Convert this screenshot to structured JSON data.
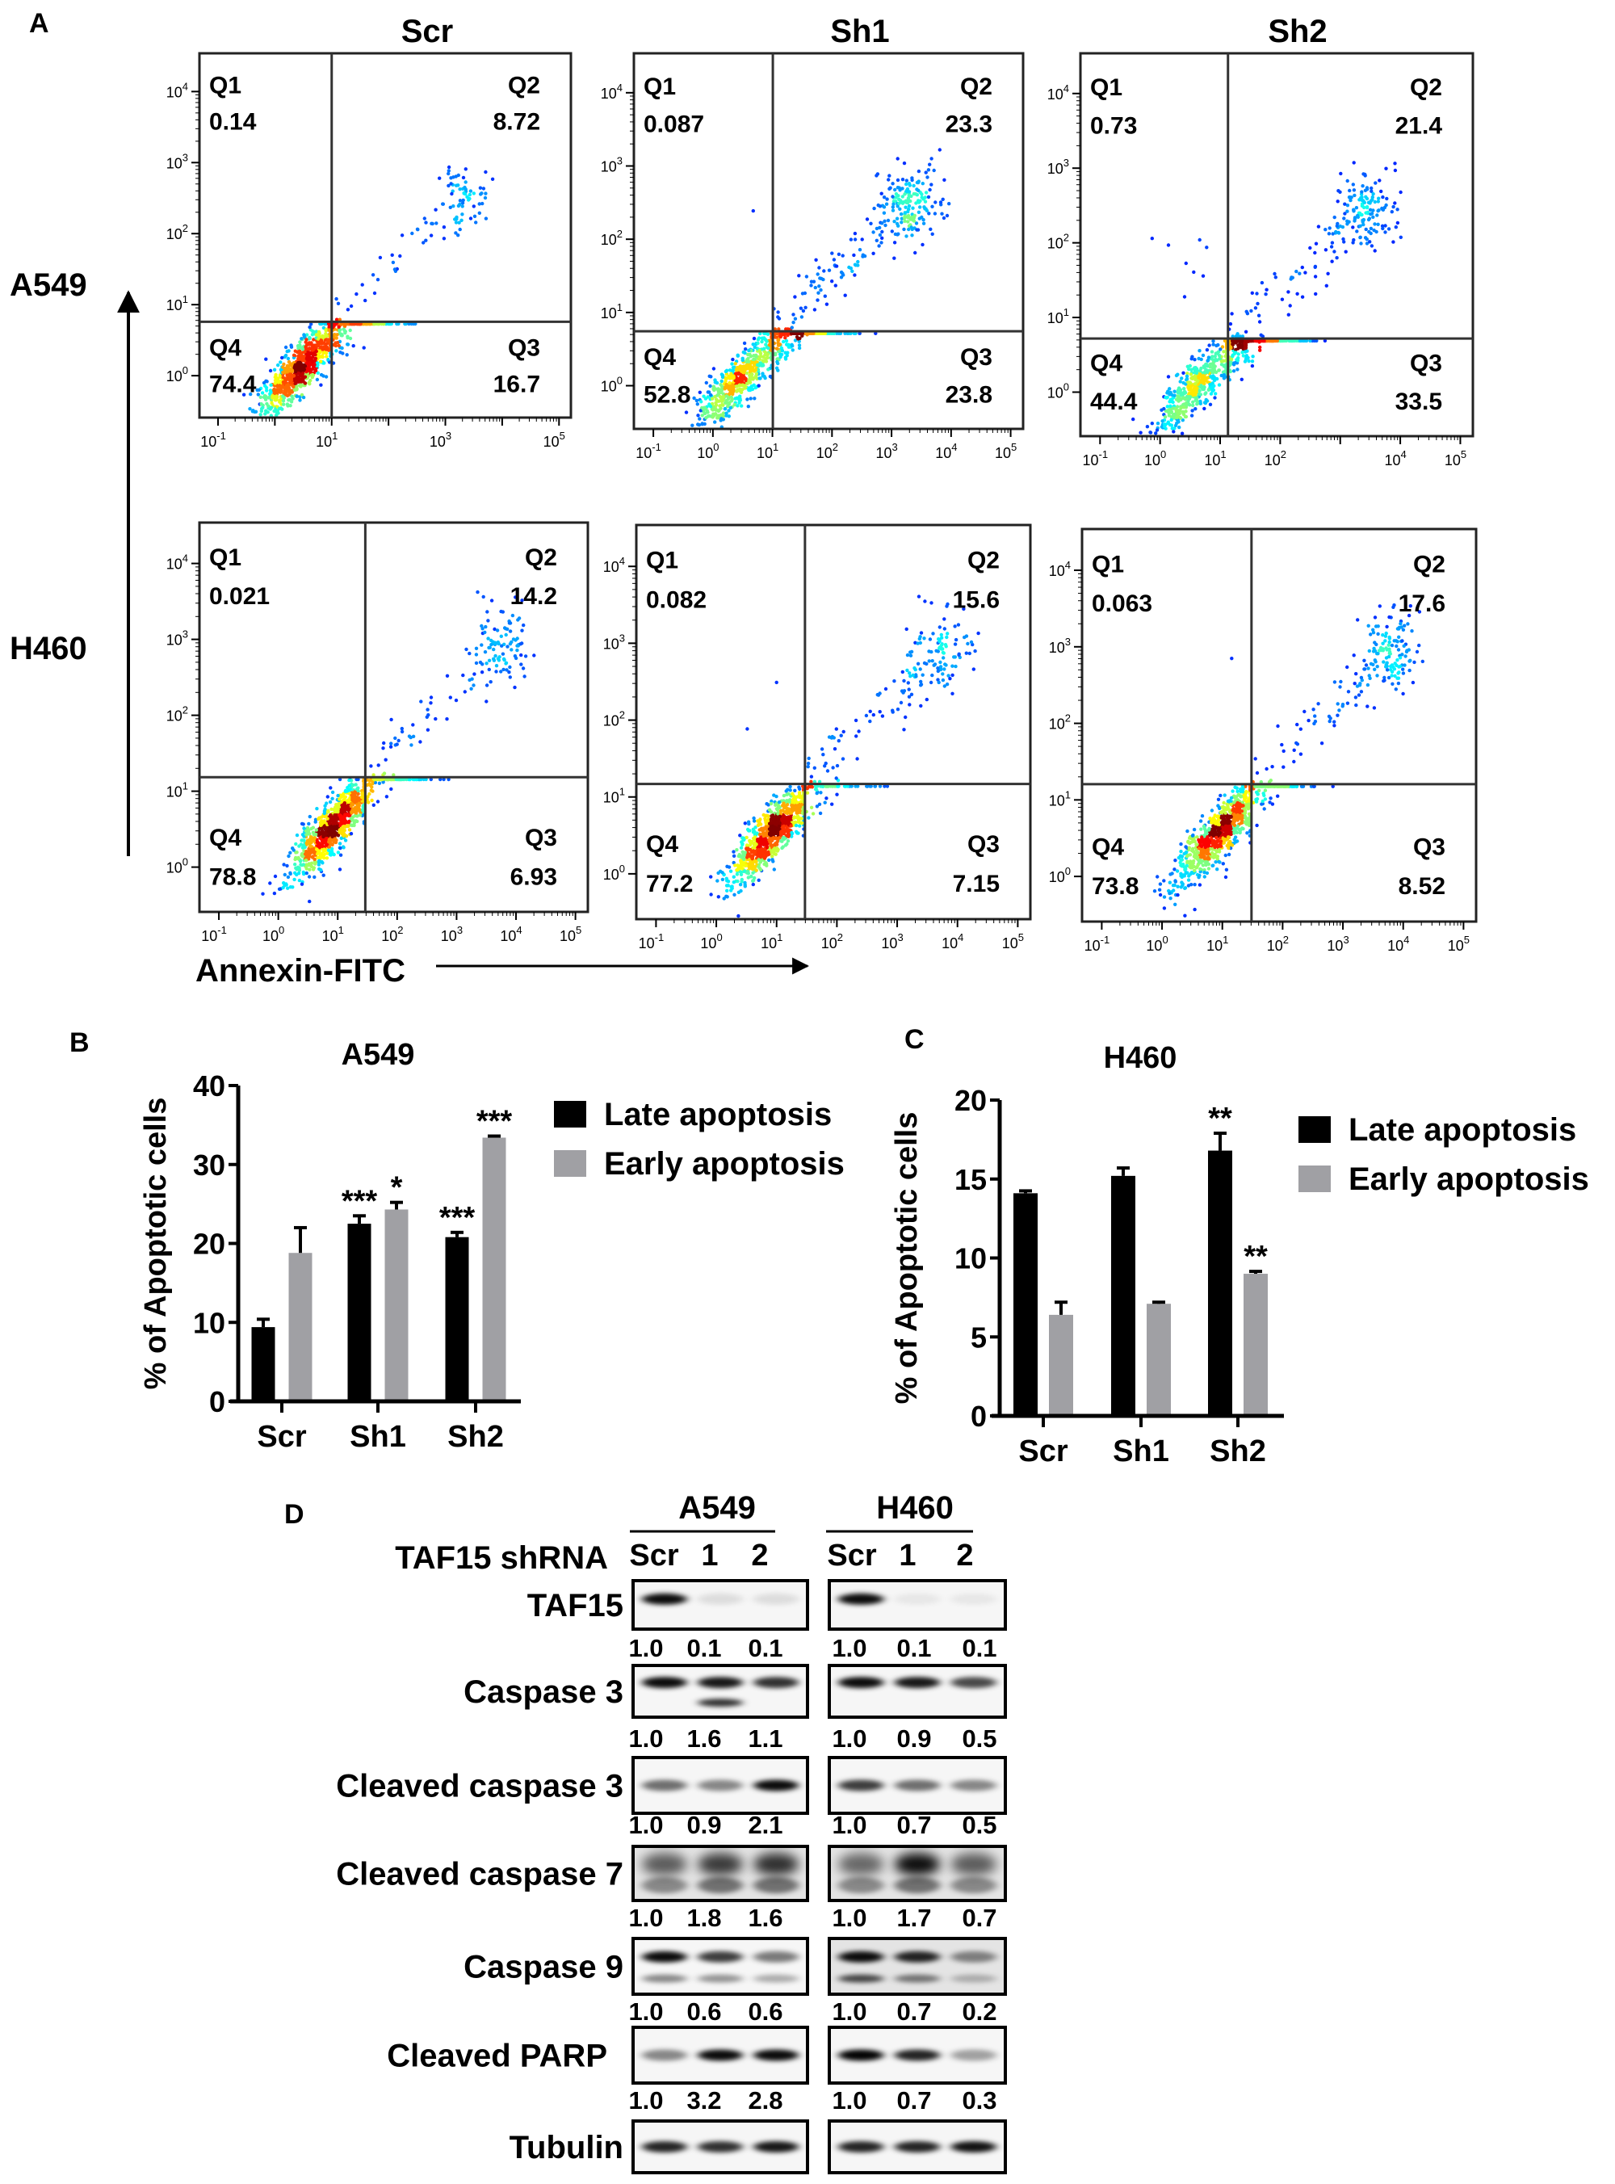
{
  "panel_labels": {
    "a": "A",
    "b": "B",
    "c": "C",
    "d": "D"
  },
  "flow": {
    "column_titles": [
      "Scr",
      "Sh1",
      "Sh2"
    ],
    "row_labels": [
      "A549",
      "H460"
    ],
    "x_axis_label": "Annexin-FITC",
    "tick_base": "10",
    "quadrant_names": [
      "Q1",
      "Q2",
      "Q3",
      "Q4"
    ],
    "plots": [
      {
        "cell_line": "A549",
        "sample": "Scr",
        "quadrants": {
          "Q1": "0.14",
          "Q2": "8.72",
          "Q3": "16.7",
          "Q4": "74.4"
        },
        "x_tick_exponents": [
          -1,
          1,
          3,
          5
        ],
        "y_tick_exponents": [
          0,
          1,
          2,
          3,
          4
        ]
      },
      {
        "cell_line": "A549",
        "sample": "Sh1",
        "quadrants": {
          "Q1": "0.087",
          "Q2": "23.3",
          "Q3": "23.8",
          "Q4": "52.8"
        },
        "x_tick_exponents": [
          -1,
          0,
          1,
          2,
          3,
          4,
          5
        ],
        "y_tick_exponents": [
          0,
          1,
          2,
          3,
          4
        ]
      },
      {
        "cell_line": "A549",
        "sample": "Sh2",
        "quadrants": {
          "Q1": "0.73",
          "Q2": "21.4",
          "Q3": "33.5",
          "Q4": "44.4"
        },
        "x_tick_exponents": [
          -1,
          0,
          1,
          2,
          4,
          5
        ],
        "y_tick_exponents": [
          0,
          1,
          2,
          3,
          4
        ]
      },
      {
        "cell_line": "H460",
        "sample": "Scr",
        "quadrants": {
          "Q1": "0.021",
          "Q2": "14.2",
          "Q3": "6.93",
          "Q4": "78.8"
        },
        "x_tick_exponents": [
          -1,
          0,
          1,
          2,
          3,
          4,
          5
        ],
        "y_tick_exponents": [
          0,
          1,
          2,
          3,
          4
        ]
      },
      {
        "cell_line": "H460",
        "sample": "Sh1",
        "quadrants": {
          "Q1": "0.082",
          "Q2": "15.6",
          "Q3": "7.15",
          "Q4": "77.2"
        },
        "x_tick_exponents": [
          -1,
          0,
          1,
          2,
          3,
          4,
          5
        ],
        "y_tick_exponents": [
          0,
          1,
          2,
          3,
          4
        ]
      },
      {
        "cell_line": "H460",
        "sample": "Sh2",
        "quadrants": {
          "Q1": "0.063",
          "Q2": "17.6",
          "Q3": "8.52",
          "Q4": "73.8"
        },
        "x_tick_exponents": [
          -1,
          0,
          1,
          2,
          3,
          4,
          5
        ],
        "y_tick_exponents": [
          0,
          1,
          2,
          3,
          4
        ]
      }
    ]
  },
  "chart_data": [
    {
      "type": "bar",
      "title": "A549",
      "xlabel": "",
      "ylabel": "% of Apoptotic cells",
      "categories": [
        "Scr",
        "Sh1",
        "Sh2"
      ],
      "ylim": [
        0,
        40
      ],
      "yticks": [
        "0",
        "10",
        "20",
        "30",
        "40"
      ],
      "legend": "right",
      "grid": false,
      "series": [
        {
          "name": "Late apoptosis",
          "color": "#000000",
          "values": [
            9.4,
            22.5,
            20.8
          ],
          "errors": [
            1.0,
            1.0,
            0.6
          ],
          "significance": [
            "",
            "***",
            "***"
          ]
        },
        {
          "name": "Early apoptosis",
          "color": "#a0a0a4",
          "values": [
            18.8,
            24.3,
            33.4
          ],
          "errors": [
            3.2,
            0.9,
            0.2
          ],
          "significance": [
            "",
            "*",
            "***"
          ]
        }
      ]
    },
    {
      "type": "bar",
      "title": "H460",
      "xlabel": "",
      "ylabel": "% of Apoptotic cells",
      "categories": [
        "Scr",
        "Sh1",
        "Sh2"
      ],
      "ylim": [
        0,
        20
      ],
      "yticks": [
        "0",
        "5",
        "10",
        "15",
        "20"
      ],
      "legend": "right",
      "grid": false,
      "series": [
        {
          "name": "Late apoptosis",
          "color": "#000000",
          "values": [
            14.1,
            15.2,
            16.8
          ],
          "errors": [
            0.15,
            0.5,
            1.1
          ],
          "significance": [
            "",
            "",
            "**"
          ]
        },
        {
          "name": "Early apoptosis",
          "color": "#a0a0a4",
          "values": [
            6.4,
            7.1,
            9.0
          ],
          "errors": [
            0.8,
            0.1,
            0.15
          ],
          "significance": [
            "",
            "",
            "**"
          ]
        }
      ]
    }
  ],
  "western": {
    "cell_lines": [
      "A549",
      "H460"
    ],
    "row_header": "TAF15 shRNA",
    "lanes": [
      "Scr",
      "1",
      "2"
    ],
    "rows": [
      {
        "protein": "TAF15",
        "quant": [
          [
            "1.0",
            "0.1",
            "0.1"
          ],
          [
            "1.0",
            "0.1",
            "0.1"
          ]
        ]
      },
      {
        "protein": "Caspase 3",
        "quant": [
          [
            "1.0",
            "1.6",
            "1.1"
          ],
          [
            "1.0",
            "0.9",
            "0.5"
          ]
        ]
      },
      {
        "protein": "Cleaved caspase 3",
        "quant": [
          [
            "1.0",
            "0.9",
            "2.1"
          ],
          [
            "1.0",
            "0.7",
            "0.5"
          ]
        ]
      },
      {
        "protein": "Cleaved caspase 7",
        "quant": [
          [
            "1.0",
            "1.8",
            "1.6"
          ],
          [
            "1.0",
            "1.7",
            "0.7"
          ]
        ]
      },
      {
        "protein": "Caspase 9",
        "quant": [
          [
            "1.0",
            "0.6",
            "0.6"
          ],
          [
            "1.0",
            "0.7",
            "0.2"
          ]
        ]
      },
      {
        "protein": "Cleaved PARP",
        "quant": [
          [
            "1.0",
            "3.2",
            "2.8"
          ],
          [
            "1.0",
            "0.7",
            "0.3"
          ]
        ]
      },
      {
        "protein": "Tubulin",
        "quant": null
      }
    ]
  }
}
